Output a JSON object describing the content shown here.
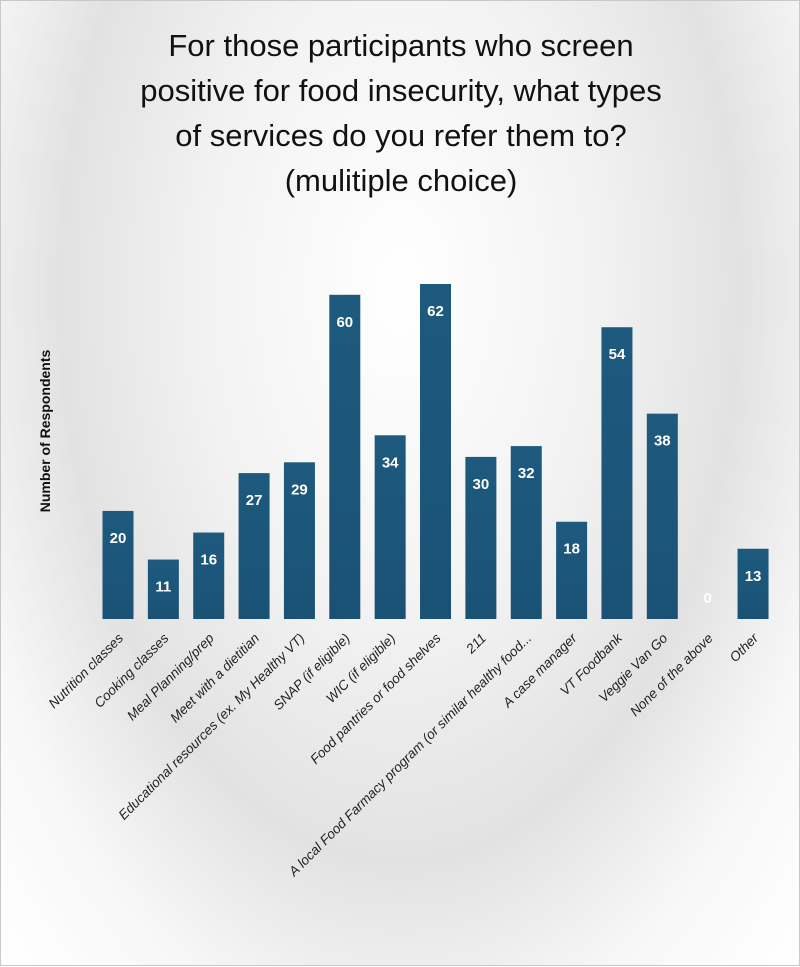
{
  "chart_data": {
    "type": "bar",
    "title": "For those participants who screen\npositive for food insecurity, what types\nof services do you refer them to?\n(mulitiple choice)",
    "xlabel": "",
    "ylabel": "Number of Respondents",
    "ylim": [
      0,
      62
    ],
    "grid": false,
    "legend": "none",
    "bar_color": "#1d5a7e",
    "label_color": "#ffffff",
    "categories": [
      "Nutrition classes",
      "Cooking classes",
      "Meal Planning/prep",
      "Meet with a dietitian",
      "Educational resources (ex. My Healthy VT)",
      "SNAP (if eligible)",
      "WIC (if eligible)",
      "Food pantries or food shelves",
      "211",
      "A local Food Farmacy program (or similar healthy food...",
      "A case manager",
      "VT Foodbank",
      "Veggie Van Go",
      "None of the above",
      "Other"
    ],
    "values": [
      20,
      11,
      16,
      27,
      29,
      60,
      34,
      62,
      30,
      32,
      18,
      54,
      38,
      0,
      13
    ]
  }
}
